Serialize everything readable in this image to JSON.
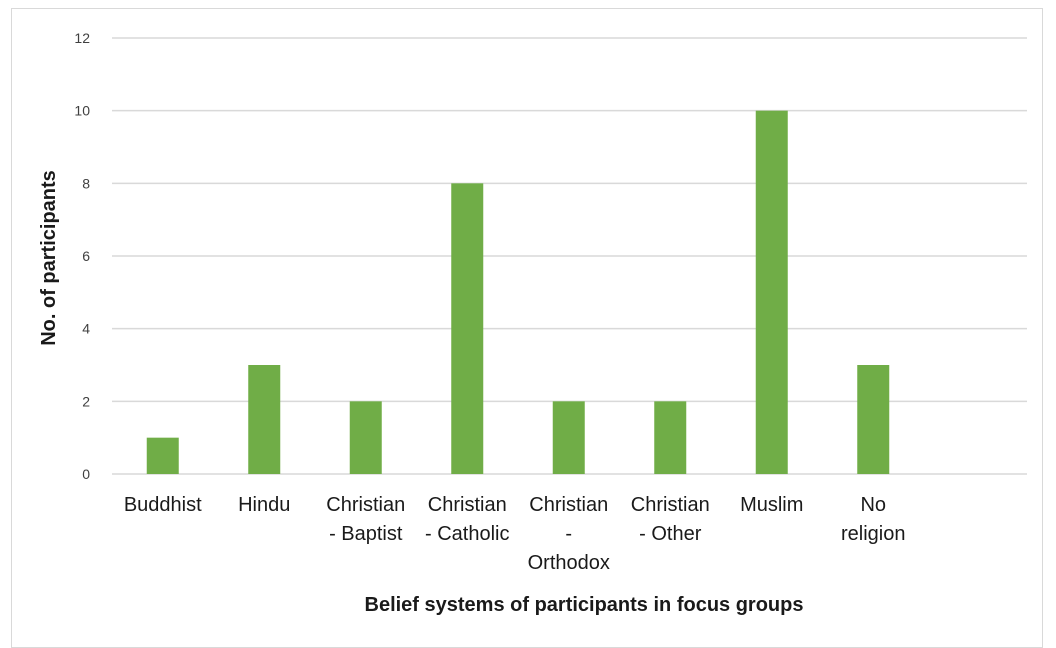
{
  "chart_data": {
    "type": "bar",
    "title": "",
    "xlabel": "Belief systems of participants in focus groups",
    "ylabel": "No. of participants",
    "categories": [
      [
        "Buddhist"
      ],
      [
        "Hindu"
      ],
      [
        "Christian",
        "- Baptist"
      ],
      [
        "Christian",
        "- Catholic"
      ],
      [
        "Christian",
        "-",
        "Orthodox"
      ],
      [
        "Christian",
        "- Other"
      ],
      [
        "Muslim"
      ],
      [
        "No",
        "religion"
      ]
    ],
    "values": [
      1,
      3,
      2,
      8,
      2,
      2,
      10,
      3
    ],
    "ylim": [
      0,
      12
    ],
    "yticks": [
      0,
      2,
      4,
      6,
      8,
      10,
      12
    ],
    "grid": true,
    "legend": "none",
    "colors": {
      "bar": "#70ad47",
      "grid": "#d9d9d9",
      "frame": "#d9d9d9"
    }
  }
}
